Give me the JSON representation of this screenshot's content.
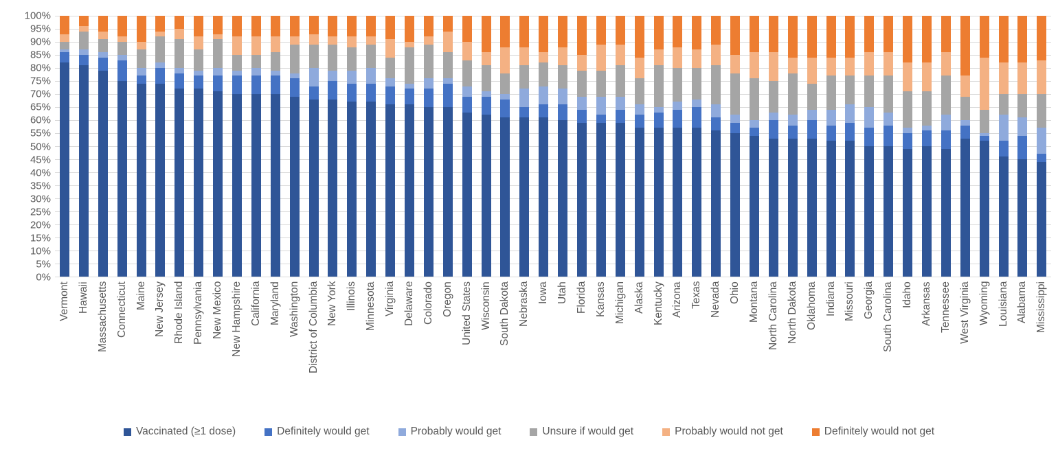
{
  "chart_data": {
    "type": "bar",
    "stacked": true,
    "units": "percent",
    "title": "",
    "xlabel": "",
    "ylabel": "",
    "ylim": [
      0,
      100
    ],
    "ytick_step": 5,
    "ytick_labels": [
      "100%",
      "95%",
      "90%",
      "85%",
      "80%",
      "75%",
      "70%",
      "65%",
      "60%",
      "55%",
      "50%",
      "45%",
      "40%",
      "35%",
      "30%",
      "25%",
      "20%",
      "15%",
      "10%",
      "5%",
      "0%"
    ],
    "grid": true,
    "legend_position": "bottom",
    "grid_color": "#d9d9d9",
    "text_color": "#595959",
    "categories": [
      "Vermont",
      "Hawaii",
      "Massachusetts",
      "Connecticut",
      "Maine",
      "New Jersey",
      "Rhode Island",
      "Pennsylvania",
      "New Mexico",
      "New Hampshire",
      "California",
      "Maryland",
      "Washington",
      "District of Columbia",
      "New York",
      "Illinois",
      "Minnesota",
      "Virginia",
      "Delaware",
      "Colorado",
      "Oregon",
      "United States",
      "Wisconsin",
      "South Dakota",
      "Nebraska",
      "Iowa",
      "Utah",
      "Florida",
      "Kansas",
      "Michigan",
      "Alaska",
      "Kentucky",
      "Arizona",
      "Texas",
      "Nevada",
      "Ohio",
      "Montana",
      "North Carolina",
      "North Dakota",
      "Oklahoma",
      "Indiana",
      "Missouri",
      "Georgia",
      "South Carolina",
      "Idaho",
      "Arkansas",
      "Tennessee",
      "West Virginia",
      "Wyoming",
      "Louisiana",
      "Alabama",
      "Mississippi"
    ],
    "series": [
      {
        "name": "Vaccinated (≥1 dose)",
        "color": "#2F5597",
        "values": [
          82,
          81,
          79,
          75,
          74,
          74,
          72,
          72,
          71,
          70,
          70,
          70,
          69,
          68,
          68,
          67,
          67,
          66,
          66,
          65,
          65,
          63,
          62,
          61,
          61,
          61,
          60,
          59,
          59,
          59,
          57,
          57,
          57,
          57,
          56,
          55,
          54,
          53,
          53,
          53,
          52,
          52,
          50,
          50,
          49,
          50,
          49,
          53,
          52,
          46,
          45,
          44
        ]
      },
      {
        "name": "Definitely would get",
        "color": "#4472C4",
        "values": [
          4,
          4,
          5,
          8,
          3,
          6,
          6,
          5,
          6,
          7,
          7,
          7,
          7,
          5,
          7,
          7,
          7,
          7,
          6,
          7,
          9,
          6,
          7,
          7,
          4,
          5,
          6,
          5,
          3,
          5,
          5,
          6,
          7,
          8,
          5,
          4,
          3,
          7,
          5,
          7,
          6,
          7,
          7,
          8,
          6,
          6,
          7,
          5,
          2,
          6,
          9,
          3
        ]
      },
      {
        "name": "Probably would get",
        "color": "#8FAADC",
        "values": [
          1,
          2,
          2,
          2,
          3,
          2,
          2,
          2,
          3,
          2,
          3,
          2,
          2,
          7,
          4,
          5,
          6,
          3,
          2,
          4,
          2,
          4,
          2,
          2,
          7,
          7,
          6,
          5,
          7,
          5,
          4,
          2,
          3,
          3,
          5,
          3,
          3,
          3,
          4,
          4,
          6,
          7,
          8,
          5,
          2,
          2,
          6,
          2,
          1,
          10,
          7,
          10
        ]
      },
      {
        "name": "Unsure if would get",
        "color": "#A5A5A5",
        "values": [
          3,
          7,
          5,
          5,
          7,
          10,
          11,
          8,
          11,
          6,
          5,
          7,
          11,
          9,
          10,
          9,
          9,
          8,
          14,
          13,
          10,
          10,
          10,
          8,
          9,
          9,
          9,
          10,
          10,
          12,
          10,
          16,
          13,
          12,
          15,
          16,
          16,
          12,
          16,
          10,
          13,
          11,
          12,
          14,
          14,
          13,
          15,
          9,
          9,
          8,
          9,
          13
        ]
      },
      {
        "name": "Probably would not get",
        "color": "#F4B183",
        "values": [
          3,
          2,
          3,
          2,
          3,
          2,
          4,
          5,
          2,
          7,
          7,
          6,
          3,
          4,
          3,
          4,
          3,
          7,
          2,
          3,
          8,
          7,
          5,
          10,
          7,
          4,
          7,
          6,
          10,
          8,
          8,
          6,
          8,
          7,
          8,
          7,
          10,
          11,
          6,
          10,
          7,
          7,
          9,
          9,
          11,
          11,
          9,
          8,
          20,
          12,
          12,
          13
        ]
      },
      {
        "name": "Definitely would not get",
        "color": "#ED7D31",
        "values": [
          7,
          4,
          6,
          8,
          10,
          6,
          5,
          8,
          7,
          8,
          8,
          8,
          8,
          7,
          8,
          8,
          8,
          9,
          10,
          8,
          6,
          10,
          14,
          12,
          12,
          14,
          12,
          15,
          11,
          11,
          16,
          13,
          12,
          13,
          11,
          15,
          14,
          14,
          16,
          16,
          16,
          16,
          14,
          14,
          18,
          18,
          14,
          23,
          16,
          18,
          18,
          17
        ]
      }
    ]
  }
}
